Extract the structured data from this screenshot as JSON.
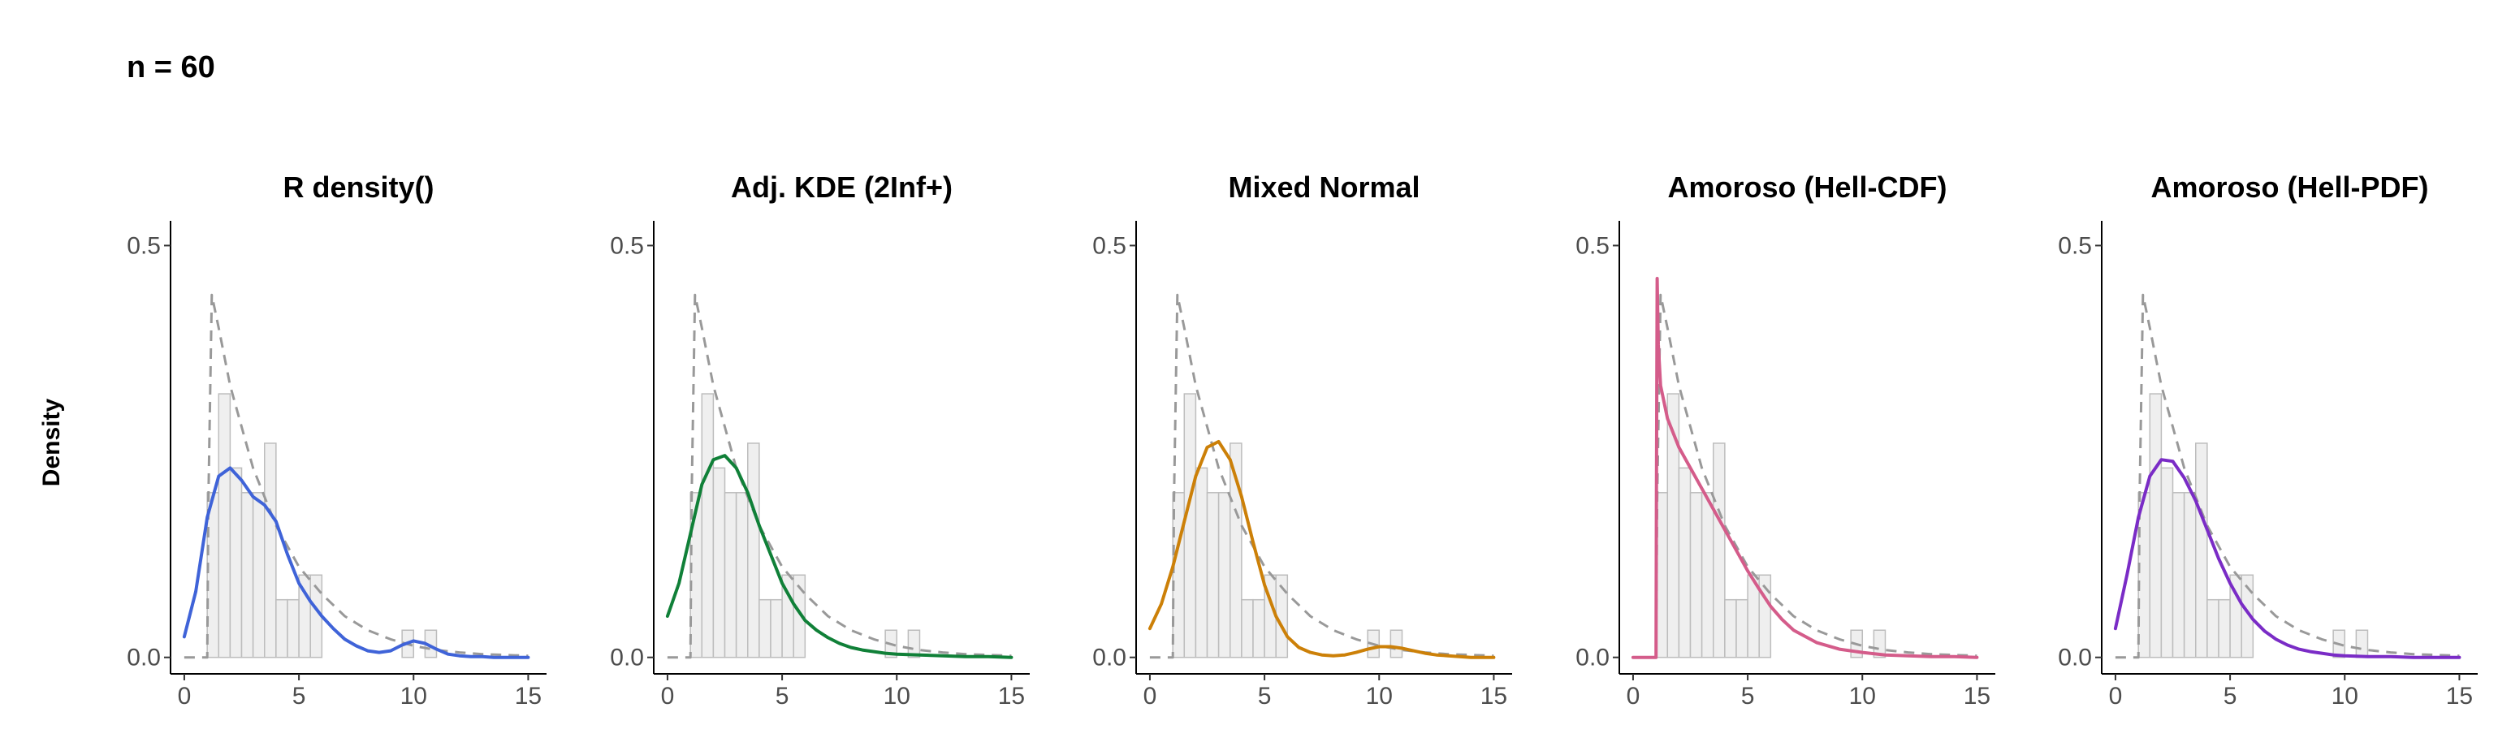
{
  "header": {
    "title": "n = 60"
  },
  "ylabel": "Density",
  "colors": {
    "hist_fill": "#efefef",
    "hist_stroke": "#bdbdbd",
    "true_density": "#999999",
    "axis": "#000000"
  },
  "chart_data": [
    {
      "type": "line",
      "title": "R density()",
      "color": "#3f63d8",
      "xlim": [
        -0.6,
        15.8
      ],
      "ylim": [
        -0.02,
        0.53
      ],
      "xticks": [
        0,
        5,
        10,
        15
      ],
      "yticks": [
        0.0,
        0.5
      ],
      "ytick_labels": [
        "0.0",
        "0.5"
      ],
      "grid": false,
      "histogram": {
        "bin_width": 0.5,
        "bins": [
          [
            1.0,
            0.2
          ],
          [
            1.5,
            0.32
          ],
          [
            2.0,
            0.23
          ],
          [
            2.5,
            0.2
          ],
          [
            3.0,
            0.2
          ],
          [
            3.5,
            0.26
          ],
          [
            4.0,
            0.07
          ],
          [
            4.5,
            0.07
          ],
          [
            5.0,
            0.1
          ],
          [
            5.5,
            0.1
          ],
          [
            9.5,
            0.033
          ],
          [
            10.5,
            0.033
          ]
        ]
      },
      "true_density": {
        "x": [
          0,
          1.0,
          1.05,
          1.2,
          1.5,
          2,
          3,
          4,
          5,
          6,
          7,
          8,
          9,
          10,
          11,
          12,
          13,
          14,
          15
        ],
        "y": [
          0,
          0,
          0.19,
          0.44,
          0.4,
          0.33,
          0.23,
          0.16,
          0.11,
          0.077,
          0.05,
          0.033,
          0.022,
          0.014,
          0.009,
          0.006,
          0.004,
          0.003,
          0.002
        ]
      },
      "fit": {
        "x": [
          0,
          0.5,
          1,
          1.5,
          2,
          2.5,
          3,
          3.5,
          4,
          4.5,
          5,
          5.5,
          6,
          6.5,
          7,
          7.5,
          8,
          8.5,
          9,
          9.5,
          10,
          10.5,
          11,
          11.5,
          12,
          12.5,
          13,
          13.5,
          14,
          14.5,
          15
        ],
        "y": [
          0.025,
          0.08,
          0.17,
          0.22,
          0.23,
          0.215,
          0.195,
          0.185,
          0.165,
          0.125,
          0.09,
          0.068,
          0.05,
          0.035,
          0.022,
          0.014,
          0.008,
          0.006,
          0.008,
          0.015,
          0.02,
          0.017,
          0.01,
          0.004,
          0.002,
          0.001,
          0.001,
          0,
          0,
          0,
          0
        ]
      }
    },
    {
      "type": "line",
      "title": "Adj. KDE (2Inf+)",
      "color": "#108038",
      "xlim": [
        -0.6,
        15.8
      ],
      "ylim": [
        -0.02,
        0.53
      ],
      "xticks": [
        0,
        5,
        10,
        15
      ],
      "yticks": [
        0.0,
        0.5
      ],
      "ytick_labels": [
        "0.0",
        "0.5"
      ],
      "grid": false,
      "histogram": {
        "bin_width": 0.5,
        "bins": [
          [
            1.0,
            0.2
          ],
          [
            1.5,
            0.32
          ],
          [
            2.0,
            0.23
          ],
          [
            2.5,
            0.2
          ],
          [
            3.0,
            0.2
          ],
          [
            3.5,
            0.26
          ],
          [
            4.0,
            0.07
          ],
          [
            4.5,
            0.07
          ],
          [
            5.0,
            0.1
          ],
          [
            5.5,
            0.1
          ],
          [
            9.5,
            0.033
          ],
          [
            10.5,
            0.033
          ]
        ]
      },
      "true_density": {
        "x": [
          0,
          1.0,
          1.05,
          1.2,
          1.5,
          2,
          3,
          4,
          5,
          6,
          7,
          8,
          9,
          10,
          11,
          12,
          13,
          14,
          15
        ],
        "y": [
          0,
          0,
          0.19,
          0.44,
          0.4,
          0.33,
          0.23,
          0.16,
          0.11,
          0.077,
          0.05,
          0.033,
          0.022,
          0.014,
          0.009,
          0.006,
          0.004,
          0.003,
          0.002
        ]
      },
      "fit": {
        "x": [
          0,
          0.5,
          1,
          1.5,
          2,
          2.5,
          3,
          3.5,
          4,
          4.5,
          5,
          5.5,
          6,
          6.5,
          7,
          7.5,
          8,
          8.5,
          9,
          9.5,
          10,
          11,
          12,
          13,
          14,
          15
        ],
        "y": [
          0.05,
          0.09,
          0.15,
          0.21,
          0.24,
          0.245,
          0.23,
          0.2,
          0.16,
          0.125,
          0.09,
          0.065,
          0.045,
          0.033,
          0.024,
          0.017,
          0.012,
          0.009,
          0.007,
          0.005,
          0.004,
          0.003,
          0.002,
          0.001,
          0.001,
          0
        ]
      }
    },
    {
      "type": "line",
      "title": "Mixed Normal",
      "color": "#cc8008",
      "xlim": [
        -0.6,
        15.8
      ],
      "ylim": [
        -0.02,
        0.53
      ],
      "xticks": [
        0,
        5,
        10,
        15
      ],
      "yticks": [
        0.0,
        0.5
      ],
      "ytick_labels": [
        "0.0",
        "0.5"
      ],
      "grid": false,
      "histogram": {
        "bin_width": 0.5,
        "bins": [
          [
            1.0,
            0.2
          ],
          [
            1.5,
            0.32
          ],
          [
            2.0,
            0.23
          ],
          [
            2.5,
            0.2
          ],
          [
            3.0,
            0.2
          ],
          [
            3.5,
            0.26
          ],
          [
            4.0,
            0.07
          ],
          [
            4.5,
            0.07
          ],
          [
            5.0,
            0.1
          ],
          [
            5.5,
            0.1
          ],
          [
            9.5,
            0.033
          ],
          [
            10.5,
            0.033
          ]
        ]
      },
      "true_density": {
        "x": [
          0,
          1.0,
          1.05,
          1.2,
          1.5,
          2,
          3,
          4,
          5,
          6,
          7,
          8,
          9,
          10,
          11,
          12,
          13,
          14,
          15
        ],
        "y": [
          0,
          0,
          0.19,
          0.44,
          0.4,
          0.33,
          0.23,
          0.16,
          0.11,
          0.077,
          0.05,
          0.033,
          0.022,
          0.014,
          0.009,
          0.006,
          0.004,
          0.003,
          0.002
        ]
      },
      "fit": {
        "x": [
          0,
          0.5,
          1,
          1.5,
          2,
          2.5,
          3,
          3.5,
          4,
          4.5,
          5,
          5.5,
          6,
          6.5,
          7,
          7.5,
          8,
          8.5,
          9,
          9.5,
          10,
          10.5,
          11,
          11.5,
          12,
          12.5,
          13,
          13.5,
          14,
          14.5,
          15
        ],
        "y": [
          0.035,
          0.065,
          0.11,
          0.165,
          0.22,
          0.255,
          0.262,
          0.24,
          0.195,
          0.14,
          0.088,
          0.05,
          0.025,
          0.012,
          0.006,
          0.003,
          0.002,
          0.003,
          0.006,
          0.01,
          0.013,
          0.013,
          0.011,
          0.008,
          0.005,
          0.003,
          0.002,
          0.001,
          0,
          0,
          0
        ]
      }
    },
    {
      "type": "line",
      "title": "Amoroso (Hell-CDF)",
      "color": "#d45c8a",
      "xlim": [
        -0.6,
        15.8
      ],
      "ylim": [
        -0.02,
        0.53
      ],
      "xticks": [
        0,
        5,
        10,
        15
      ],
      "yticks": [
        0.0,
        0.5
      ],
      "ytick_labels": [
        "0.0",
        "0.5"
      ],
      "grid": false,
      "histogram": {
        "bin_width": 0.5,
        "bins": [
          [
            1.0,
            0.2
          ],
          [
            1.5,
            0.32
          ],
          [
            2.0,
            0.23
          ],
          [
            2.5,
            0.2
          ],
          [
            3.0,
            0.2
          ],
          [
            3.5,
            0.26
          ],
          [
            4.0,
            0.07
          ],
          [
            4.5,
            0.07
          ],
          [
            5.0,
            0.1
          ],
          [
            5.5,
            0.1
          ],
          [
            9.5,
            0.033
          ],
          [
            10.5,
            0.033
          ]
        ]
      },
      "true_density": {
        "x": [
          0,
          1.0,
          1.05,
          1.2,
          1.5,
          2,
          3,
          4,
          5,
          6,
          7,
          8,
          9,
          10,
          11,
          12,
          13,
          14,
          15
        ],
        "y": [
          0,
          0,
          0.19,
          0.44,
          0.4,
          0.33,
          0.23,
          0.16,
          0.11,
          0.077,
          0.05,
          0.033,
          0.022,
          0.014,
          0.009,
          0.006,
          0.004,
          0.003,
          0.002
        ]
      },
      "fit": {
        "x": [
          0,
          0.95,
          1.0,
          1.02,
          1.05,
          1.1,
          1.2,
          1.5,
          2,
          2.5,
          3,
          3.5,
          4,
          4.5,
          5,
          5.5,
          6,
          6.5,
          7,
          8,
          9,
          10,
          11,
          12,
          13,
          14,
          15
        ],
        "y": [
          0,
          0,
          0.0,
          0.2,
          0.46,
          0.38,
          0.33,
          0.29,
          0.255,
          0.23,
          0.205,
          0.18,
          0.155,
          0.13,
          0.105,
          0.083,
          0.062,
          0.046,
          0.033,
          0.018,
          0.01,
          0.006,
          0.003,
          0.002,
          0.001,
          0.001,
          0
        ]
      }
    },
    {
      "type": "line",
      "title": "Amoroso (Hell-PDF)",
      "color": "#7a2cc6",
      "xlim": [
        -0.6,
        15.8
      ],
      "ylim": [
        -0.02,
        0.53
      ],
      "xticks": [
        0,
        5,
        10,
        15
      ],
      "yticks": [
        0.0,
        0.5
      ],
      "ytick_labels": [
        "0.0",
        "0.5"
      ],
      "grid": false,
      "histogram": {
        "bin_width": 0.5,
        "bins": [
          [
            1.0,
            0.2
          ],
          [
            1.5,
            0.32
          ],
          [
            2.0,
            0.23
          ],
          [
            2.5,
            0.2
          ],
          [
            3.0,
            0.2
          ],
          [
            3.5,
            0.26
          ],
          [
            4.0,
            0.07
          ],
          [
            4.5,
            0.07
          ],
          [
            5.0,
            0.1
          ],
          [
            5.5,
            0.1
          ],
          [
            9.5,
            0.033
          ],
          [
            10.5,
            0.033
          ]
        ]
      },
      "true_density": {
        "x": [
          0,
          1.0,
          1.05,
          1.2,
          1.5,
          2,
          3,
          4,
          5,
          6,
          7,
          8,
          9,
          10,
          11,
          12,
          13,
          14,
          15
        ],
        "y": [
          0,
          0,
          0.19,
          0.44,
          0.4,
          0.33,
          0.23,
          0.16,
          0.11,
          0.077,
          0.05,
          0.033,
          0.022,
          0.014,
          0.009,
          0.006,
          0.004,
          0.003,
          0.002
        ]
      },
      "fit": {
        "x": [
          0,
          0.5,
          1,
          1.5,
          2,
          2.5,
          3,
          3.5,
          4,
          4.5,
          5,
          5.5,
          6,
          6.5,
          7,
          7.5,
          8,
          8.5,
          9,
          9.5,
          10,
          11,
          12,
          13,
          14,
          15
        ],
        "y": [
          0.035,
          0.1,
          0.17,
          0.22,
          0.24,
          0.238,
          0.218,
          0.19,
          0.155,
          0.12,
          0.09,
          0.065,
          0.046,
          0.032,
          0.022,
          0.015,
          0.01,
          0.007,
          0.005,
          0.003,
          0.002,
          0.001,
          0.001,
          0,
          0,
          0
        ]
      }
    }
  ]
}
